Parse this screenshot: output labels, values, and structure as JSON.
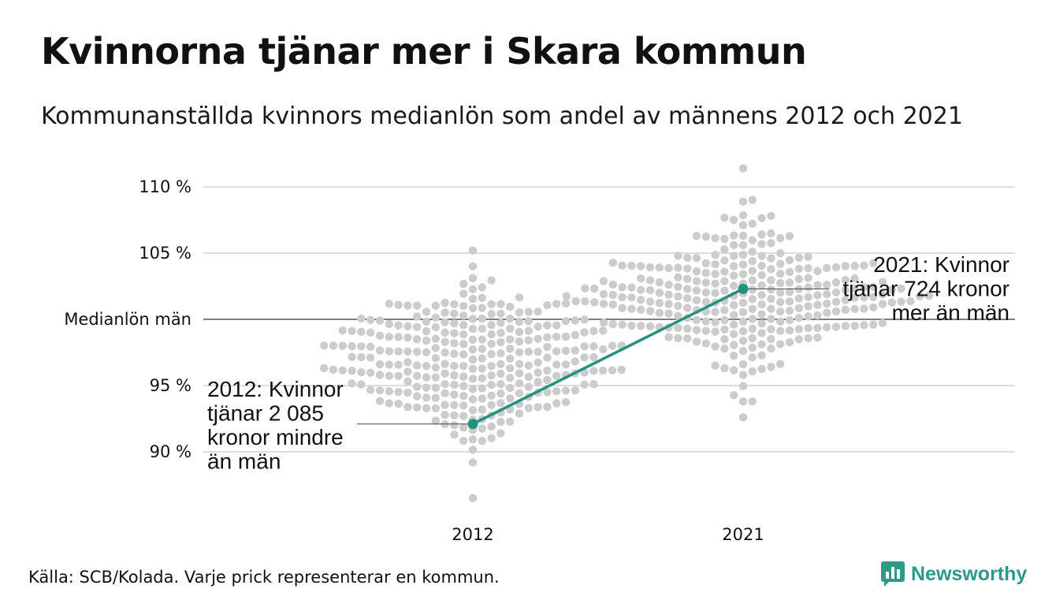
{
  "title": "Kvinnorna tjänar mer i Skara kommun",
  "subtitle": "Kommunanställda kvinnors medianlön som andel av männens 2012 och 2021",
  "footer": "Källa: SCB/Kolada. Varje prick representerar en kommun.",
  "brand": {
    "name": "Newsworthy",
    "icon": "newsworthy-logo-icon",
    "color": "#2b9a86"
  },
  "colors": {
    "dots": "#cccccc",
    "highlight": "#23917f",
    "grid": "#dddddd",
    "reference": "#555555"
  },
  "chart_data": {
    "type": "scatter",
    "subtype": "beeswarm",
    "categories": [
      "2012",
      "2021"
    ],
    "y_unit": "%",
    "ylim": [
      86,
      112
    ],
    "y_ticks": [
      {
        "value": 90,
        "label": "90 %"
      },
      {
        "value": 95,
        "label": "95 %"
      },
      {
        "value": 105,
        "label": "105 %"
      },
      {
        "value": 110,
        "label": "110 %"
      }
    ],
    "reference_line": {
      "value": 100,
      "label": "Medianlön män"
    },
    "grid": true,
    "distribution": {
      "2012": {
        "count": 290,
        "median": 96.8,
        "spread": 2.9,
        "min": 86.5,
        "max": 105.2
      },
      "2021": {
        "count": 290,
        "median": 101.8,
        "spread": 2.6,
        "min": 92.6,
        "max": 111.4
      }
    },
    "highlight": {
      "name": "Skara kommun",
      "points": [
        {
          "x": "2012",
          "y": 92.1
        },
        {
          "x": "2021",
          "y": 102.3
        }
      ],
      "annotations": [
        {
          "x": "2012",
          "lines": [
            "2012: Kvinnor",
            "tjänar 2 085",
            "kronor mindre",
            "än män"
          ]
        },
        {
          "x": "2021",
          "lines": [
            "2021: Kvinnor",
            "tjänar 724 kronor",
            "mer än män"
          ]
        }
      ]
    }
  }
}
